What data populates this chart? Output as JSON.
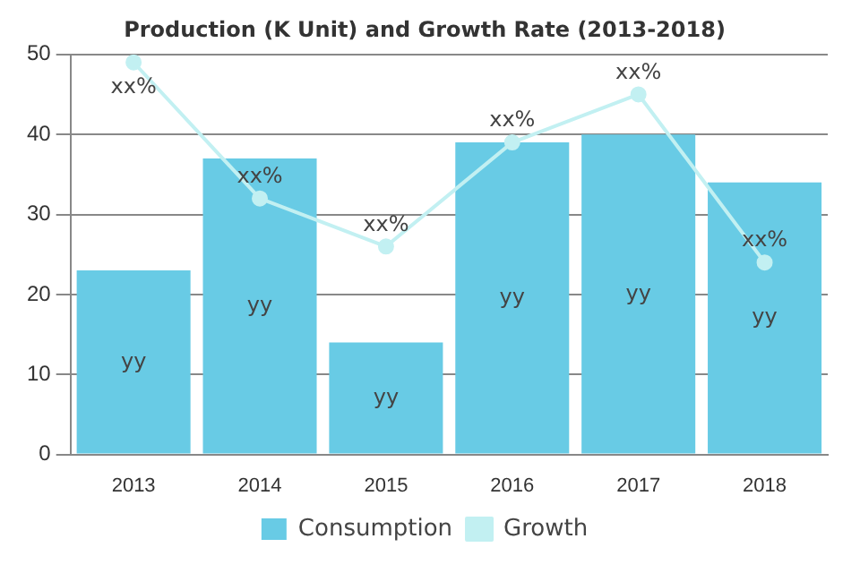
{
  "chart_data": {
    "type": "bar",
    "title": "Production (K Unit) and Growth Rate (2013-2018)",
    "categories": [
      "2013",
      "2014",
      "2015",
      "2016",
      "2017",
      "2018"
    ],
    "series": [
      {
        "name": "Consumption",
        "color": "#68cbe5",
        "values": [
          23,
          37,
          14,
          39,
          40,
          34
        ],
        "value_labels": [
          "yy",
          "yy",
          "yy",
          "yy",
          "yy",
          "yy"
        ]
      },
      {
        "name": "Growth",
        "type": "line",
        "color": "#c2f0f2",
        "marker": "circle",
        "values": [
          49,
          32,
          26,
          39,
          45,
          24
        ],
        "value_labels": [
          "xx%",
          "xx%",
          "xx%",
          "xx%",
          "xx%",
          "xx%"
        ]
      }
    ],
    "ylim": [
      0,
      50
    ],
    "yticks": [
      0,
      10,
      20,
      30,
      40,
      50
    ],
    "grid": "y",
    "legend": "bottom"
  }
}
